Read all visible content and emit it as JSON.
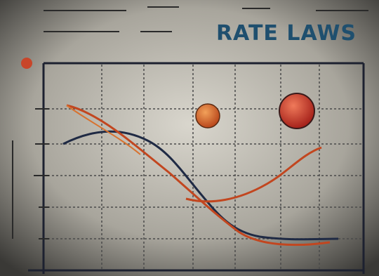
{
  "title": "RATE LAWS"
}
